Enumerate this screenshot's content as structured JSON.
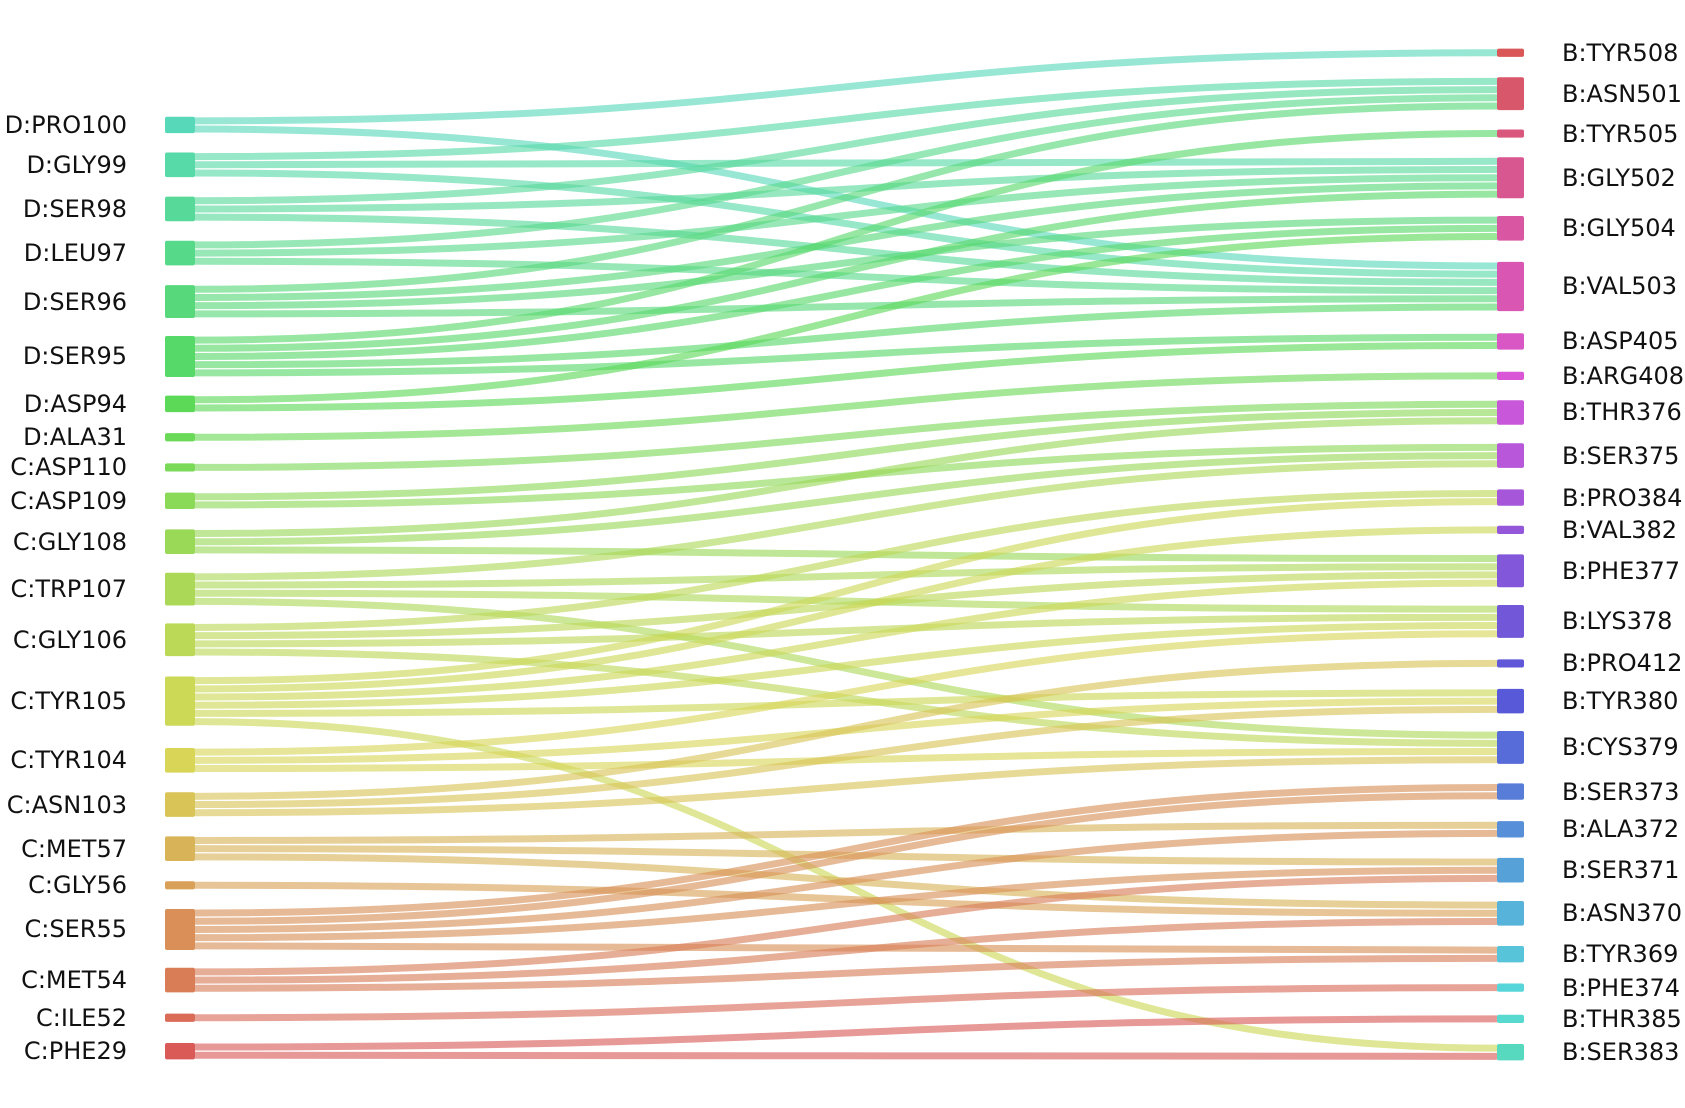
{
  "diagram": {
    "type": "sankey",
    "left_nodes": [
      {
        "label": "D:PRO100",
        "color": "#57d9b9"
      },
      {
        "label": "D:GLY99",
        "color": "#57d9a8"
      },
      {
        "label": "D:SER98",
        "color": "#57d99a"
      },
      {
        "label": "D:LEU97",
        "color": "#57d98a"
      },
      {
        "label": "D:SER96",
        "color": "#57d97b"
      },
      {
        "label": "D:SER95",
        "color": "#57d96a"
      },
      {
        "label": "D:ASP94",
        "color": "#5bd957"
      },
      {
        "label": "D:ALA31",
        "color": "#6ad957"
      },
      {
        "label": "C:ASP110",
        "color": "#7ad957"
      },
      {
        "label": "C:ASP109",
        "color": "#8ad957"
      },
      {
        "label": "C:GLY108",
        "color": "#9ad957"
      },
      {
        "label": "C:TRP107",
        "color": "#abd957"
      },
      {
        "label": "C:GLY106",
        "color": "#bbd957"
      },
      {
        "label": "C:TYR105",
        "color": "#cbd957"
      },
      {
        "label": "C:TYR104",
        "color": "#d9d557"
      },
      {
        "label": "C:ASN103",
        "color": "#d9c457"
      },
      {
        "label": "C:MET57",
        "color": "#d9b357"
      },
      {
        "label": "C:GLY56",
        "color": "#d9a157"
      },
      {
        "label": "C:SER55",
        "color": "#d98f57"
      },
      {
        "label": "C:MET54",
        "color": "#d97d57"
      },
      {
        "label": "C:ILE52",
        "color": "#d96b57"
      },
      {
        "label": "C:PHE29",
        "color": "#d95a57"
      }
    ],
    "right_nodes": [
      {
        "label": "B:TYR508",
        "color": "#d95757"
      },
      {
        "label": "B:ASN501",
        "color": "#d9576b"
      },
      {
        "label": "B:TYR505",
        "color": "#d9577d"
      },
      {
        "label": "B:GLY502",
        "color": "#d95790"
      },
      {
        "label": "B:GLY504",
        "color": "#d957a2"
      },
      {
        "label": "B:VAL503",
        "color": "#d957b3"
      },
      {
        "label": "B:ASP405",
        "color": "#d957c5"
      },
      {
        "label": "B:ARG408",
        "color": "#d957d6"
      },
      {
        "label": "B:THR376",
        "color": "#c957d9"
      },
      {
        "label": "B:SER375",
        "color": "#b857d9"
      },
      {
        "label": "B:PRO384",
        "color": "#a657d9"
      },
      {
        "label": "B:VAL382",
        "color": "#9557d9"
      },
      {
        "label": "B:PHE377",
        "color": "#8357d9"
      },
      {
        "label": "B:LYS378",
        "color": "#7257d9"
      },
      {
        "label": "B:PRO412",
        "color": "#6157d9"
      },
      {
        "label": "B:TYR380",
        "color": "#5759d9"
      },
      {
        "label": "B:CYS379",
        "color": "#576bd9"
      },
      {
        "label": "B:SER373",
        "color": "#577dd9"
      },
      {
        "label": "B:ALA372",
        "color": "#578fd9"
      },
      {
        "label": "B:SER371",
        "color": "#57a1d9"
      },
      {
        "label": "B:ASN370",
        "color": "#57b3d9"
      },
      {
        "label": "B:TYR369",
        "color": "#57c4d9"
      },
      {
        "label": "B:PHE374",
        "color": "#57d6d9"
      },
      {
        "label": "B:THR385",
        "color": "#57d9cf"
      },
      {
        "label": "B:SER383",
        "color": "#57d9c0"
      }
    ],
    "links": [
      [
        "D:PRO100",
        "B:TYR508",
        1
      ],
      [
        "D:PRO100",
        "B:VAL503",
        1
      ],
      [
        "D:GLY99",
        "B:ASN501",
        1
      ],
      [
        "D:GLY99",
        "B:GLY502",
        1
      ],
      [
        "D:GLY99",
        "B:VAL503",
        1
      ],
      [
        "D:SER98",
        "B:ASN501",
        1
      ],
      [
        "D:SER98",
        "B:GLY502",
        1
      ],
      [
        "D:SER98",
        "B:VAL503",
        1
      ],
      [
        "D:LEU97",
        "B:ASN501",
        1
      ],
      [
        "D:LEU97",
        "B:GLY502",
        1
      ],
      [
        "D:LEU97",
        "B:VAL503",
        1
      ],
      [
        "D:SER96",
        "B:ASN501",
        1
      ],
      [
        "D:SER96",
        "B:GLY502",
        1
      ],
      [
        "D:SER96",
        "B:GLY504",
        1
      ],
      [
        "D:SER96",
        "B:VAL503",
        1
      ],
      [
        "D:SER95",
        "B:TYR505",
        1
      ],
      [
        "D:SER95",
        "B:GLY502",
        1
      ],
      [
        "D:SER95",
        "B:GLY504",
        1
      ],
      [
        "D:SER95",
        "B:VAL503",
        1
      ],
      [
        "D:SER95",
        "B:ASP405",
        1
      ],
      [
        "D:ASP94",
        "B:GLY504",
        1
      ],
      [
        "D:ASP94",
        "B:ASP405",
        1
      ],
      [
        "D:ALA31",
        "B:ARG408",
        1
      ],
      [
        "C:ASP110",
        "B:THR376",
        1
      ],
      [
        "C:ASP109",
        "B:THR376",
        1
      ],
      [
        "C:ASP109",
        "B:SER375",
        1
      ],
      [
        "C:GLY108",
        "B:THR376",
        1
      ],
      [
        "C:GLY108",
        "B:SER375",
        1
      ],
      [
        "C:GLY108",
        "B:PHE377",
        1
      ],
      [
        "C:TRP107",
        "B:SER375",
        1
      ],
      [
        "C:TRP107",
        "B:PHE377",
        1
      ],
      [
        "C:TRP107",
        "B:LYS378",
        1
      ],
      [
        "C:TRP107",
        "B:CYS379",
        1
      ],
      [
        "C:GLY106",
        "B:PRO384",
        1
      ],
      [
        "C:GLY106",
        "B:PHE377",
        1
      ],
      [
        "C:GLY106",
        "B:LYS378",
        1
      ],
      [
        "C:GLY106",
        "B:CYS379",
        1
      ],
      [
        "C:TYR105",
        "B:PRO384",
        1
      ],
      [
        "C:TYR105",
        "B:VAL382",
        1
      ],
      [
        "C:TYR105",
        "B:PHE377",
        1
      ],
      [
        "C:TYR105",
        "B:LYS378",
        1
      ],
      [
        "C:TYR105",
        "B:TYR380",
        1
      ],
      [
        "C:TYR105",
        "B:SER383",
        1
      ],
      [
        "C:TYR104",
        "B:LYS378",
        1
      ],
      [
        "C:TYR104",
        "B:TYR380",
        1
      ],
      [
        "C:TYR104",
        "B:CYS379",
        1
      ],
      [
        "C:ASN103",
        "B:PRO412",
        1
      ],
      [
        "C:ASN103",
        "B:TYR380",
        1
      ],
      [
        "C:ASN103",
        "B:CYS379",
        1
      ],
      [
        "C:MET57",
        "B:ALA372",
        1
      ],
      [
        "C:MET57",
        "B:SER371",
        1
      ],
      [
        "C:MET57",
        "B:ASN370",
        1
      ],
      [
        "C:GLY56",
        "B:ASN370",
        1
      ],
      [
        "C:SER55",
        "B:SER373",
        2
      ],
      [
        "C:SER55",
        "B:ALA372",
        1
      ],
      [
        "C:SER55",
        "B:SER371",
        1
      ],
      [
        "C:SER55",
        "B:TYR369",
        1
      ],
      [
        "C:MET54",
        "B:SER371",
        1
      ],
      [
        "C:MET54",
        "B:ASN370",
        1
      ],
      [
        "C:MET54",
        "B:TYR369",
        1
      ],
      [
        "C:ILE52",
        "B:PHE374",
        1
      ],
      [
        "C:PHE29",
        "B:THR385",
        1
      ],
      [
        "C:PHE29",
        "B:SER383",
        1
      ]
    ]
  }
}
